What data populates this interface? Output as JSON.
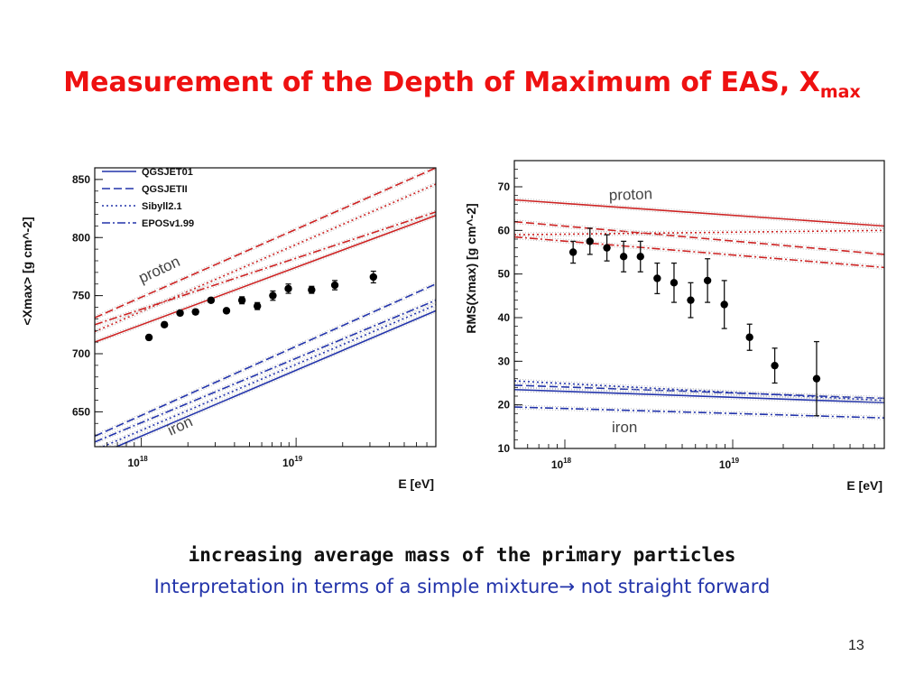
{
  "slide": {
    "title_main": "Measurement of the Depth of Maximum of EAS, X",
    "title_sub": "max",
    "caption_bold": "increasing average mass of the primary particles",
    "caption_before_arrow": "Interpretation in terms of a simple mixture",
    "caption_arrow": "→",
    "caption_after_arrow": " not straight forward",
    "page_number": "13"
  },
  "colors": {
    "title": "#ee1111",
    "caption": "#2233aa",
    "proton": "#cc2222",
    "iron": "#2233aa"
  },
  "chart_data": [
    {
      "type": "scatter",
      "ylabel": "<Xmax> [g cm^-2]",
      "xlabel": "E [eV]",
      "xscale": "log",
      "xlim": [
        5e+17,
        8e+19
      ],
      "ylim": [
        620,
        860
      ],
      "yticks": [
        "650",
        "700",
        "750",
        "800",
        "850"
      ],
      "xticks": [
        "10^18",
        "10^19"
      ],
      "legend_position": "top-left",
      "legend": [
        "QGSJET01",
        "QGSJETII",
        "Sibyll2.1",
        "EPOSv1.99"
      ],
      "annotations": [
        "proton",
        "iron"
      ],
      "points": [
        {
          "x": 1.12e+18,
          "y": 714,
          "err": 2
        },
        {
          "x": 1.41e+18,
          "y": 725,
          "err": 2
        },
        {
          "x": 1.78e+18,
          "y": 735,
          "err": 2
        },
        {
          "x": 2.24e+18,
          "y": 736,
          "err": 2
        },
        {
          "x": 2.82e+18,
          "y": 746,
          "err": 2
        },
        {
          "x": 3.55e+18,
          "y": 737,
          "err": 2
        },
        {
          "x": 4.47e+18,
          "y": 746,
          "err": 3
        },
        {
          "x": 5.62e+18,
          "y": 741,
          "err": 3
        },
        {
          "x": 7.08e+18,
          "y": 750,
          "err": 4
        },
        {
          "x": 8.91e+18,
          "y": 756,
          "err": 4
        },
        {
          "x": 1.26e+19,
          "y": 755,
          "err": 3
        },
        {
          "x": 1.78e+19,
          "y": 759,
          "err": 4
        },
        {
          "x": 3.16e+19,
          "y": 766,
          "err": 5
        }
      ],
      "models": [
        {
          "group": "proton",
          "style": "solid",
          "y_start": 710,
          "y_end": 819
        },
        {
          "group": "proton",
          "style": "dashed",
          "y_start": 731,
          "y_end": 860
        },
        {
          "group": "proton",
          "style": "dotted",
          "y_start": 719,
          "y_end": 846
        },
        {
          "group": "proton",
          "style": "dashdot",
          "y_start": 725,
          "y_end": 822
        },
        {
          "group": "iron",
          "style": "solid",
          "y_start": 612,
          "y_end": 737
        },
        {
          "group": "iron",
          "style": "dashed",
          "y_start": 629,
          "y_end": 760
        },
        {
          "group": "iron",
          "style": "dotted",
          "y_start": 617,
          "y_end": 742
        },
        {
          "group": "iron",
          "style": "dashdot",
          "y_start": 624,
          "y_end": 746
        }
      ]
    },
    {
      "type": "scatter",
      "ylabel": "RMS(Xmax) [g cm^-2]",
      "xlabel": "E [eV]",
      "xscale": "log",
      "xlim": [
        5e+17,
        8e+19
      ],
      "ylim": [
        10,
        76
      ],
      "yticks": [
        "10",
        "20",
        "30",
        "40",
        "50",
        "60",
        "70"
      ],
      "xticks": [
        "10^18",
        "10^19"
      ],
      "annotations": [
        "proton",
        "iron"
      ],
      "points": [
        {
          "x": 1.12e+18,
          "y": 55,
          "err": 2.5
        },
        {
          "x": 1.41e+18,
          "y": 57.5,
          "err": 3
        },
        {
          "x": 1.78e+18,
          "y": 56,
          "err": 3
        },
        {
          "x": 2.24e+18,
          "y": 54,
          "err": 3.5
        },
        {
          "x": 2.82e+18,
          "y": 54,
          "err": 3.5
        },
        {
          "x": 3.55e+18,
          "y": 49,
          "err": 3.5
        },
        {
          "x": 4.47e+18,
          "y": 48,
          "err": 4.5
        },
        {
          "x": 5.62e+18,
          "y": 44,
          "err": 4
        },
        {
          "x": 7.08e+18,
          "y": 48.5,
          "err": 5
        },
        {
          "x": 8.91e+18,
          "y": 43,
          "err": 5.5
        },
        {
          "x": 1.26e+19,
          "y": 35.5,
          "err": 3
        },
        {
          "x": 1.78e+19,
          "y": 29,
          "err": 4
        },
        {
          "x": 3.16e+19,
          "y": 26,
          "err": 8.5
        }
      ],
      "models": [
        {
          "group": "proton",
          "style": "solid",
          "y_start": 67,
          "y_end": 61
        },
        {
          "group": "proton",
          "style": "dashed",
          "y_start": 62,
          "y_end": 54.5
        },
        {
          "group": "proton",
          "style": "dotted",
          "y_start": 59,
          "y_end": 60
        },
        {
          "group": "proton",
          "style": "dashdot",
          "y_start": 58.5,
          "y_end": 51.5
        },
        {
          "group": "iron",
          "style": "solid",
          "y_start": 23.5,
          "y_end": 20.5
        },
        {
          "group": "iron",
          "style": "dashed",
          "y_start": 24.5,
          "y_end": 21.5
        },
        {
          "group": "iron",
          "style": "dotted",
          "y_start": 25.5,
          "y_end": 21
        },
        {
          "group": "iron",
          "style": "dashdot",
          "y_start": 19.5,
          "y_end": 17
        }
      ]
    }
  ]
}
